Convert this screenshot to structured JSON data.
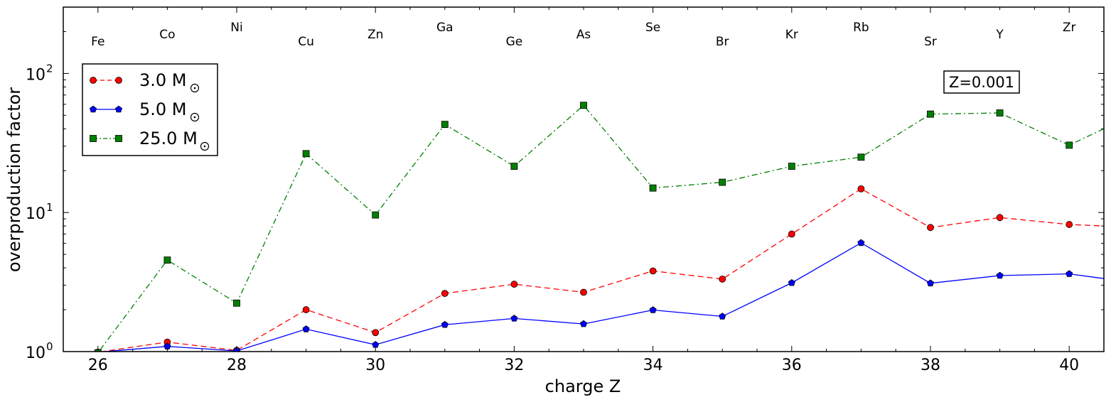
{
  "chart_data": {
    "type": "line",
    "xlabel": "charge Z",
    "ylabel": "overproduction factor",
    "yscale": "log",
    "xlim": [
      25.5,
      40.5
    ],
    "ylim": [
      1.0,
      300
    ],
    "x_ticks": [
      26,
      28,
      30,
      32,
      34,
      36,
      38,
      40
    ],
    "y_ticks": [
      {
        "value": 1,
        "mantissa": "10",
        "exponent": "0"
      },
      {
        "value": 10,
        "mantissa": "10",
        "exponent": "1"
      },
      {
        "value": 100,
        "mantissa": "10",
        "exponent": "2"
      }
    ],
    "annotation": "Z=0.001",
    "element_labels": [
      {
        "z": 26,
        "symbol": "Fe",
        "row": 2
      },
      {
        "z": 27,
        "symbol": "Co",
        "row": 1
      },
      {
        "z": 28,
        "symbol": "Ni",
        "row": 0
      },
      {
        "z": 29,
        "symbol": "Cu",
        "row": 2
      },
      {
        "z": 30,
        "symbol": "Zn",
        "row": 1
      },
      {
        "z": 31,
        "symbol": "Ga",
        "row": 0
      },
      {
        "z": 32,
        "symbol": "Ge",
        "row": 2
      },
      {
        "z": 33,
        "symbol": "As",
        "row": 1
      },
      {
        "z": 34,
        "symbol": "Se",
        "row": 0
      },
      {
        "z": 35,
        "symbol": "Br",
        "row": 2
      },
      {
        "z": 36,
        "symbol": "Kr",
        "row": 1
      },
      {
        "z": 37,
        "symbol": "Rb",
        "row": 0
      },
      {
        "z": 38,
        "symbol": "Sr",
        "row": 2
      },
      {
        "z": 39,
        "symbol": "Y",
        "row": 1
      },
      {
        "z": 40,
        "symbol": "Zr",
        "row": 0
      }
    ],
    "series": [
      {
        "name": "3.0 M☉",
        "legend_label": "3.0 M",
        "color": "#ff0000",
        "marker": "circle",
        "dash": "8,5",
        "x": [
          25.5,
          26,
          27,
          28,
          29,
          30,
          31,
          32,
          33,
          34,
          35,
          36,
          37,
          38,
          39,
          40,
          40.5
        ],
        "values": [
          0.995,
          0.99,
          1.17,
          1.02,
          2.0,
          1.37,
          2.62,
          3.05,
          2.67,
          3.8,
          3.32,
          7.0,
          14.8,
          7.8,
          9.2,
          8.2,
          8.0
        ]
      },
      {
        "name": "5.0 M☉",
        "legend_label": "5.0 M",
        "color": "#0000ff",
        "marker": "pentagon",
        "dash": "",
        "x": [
          25.5,
          26,
          27,
          28,
          29,
          30,
          31,
          32,
          33,
          34,
          35,
          36,
          37,
          38,
          39,
          40,
          40.5
        ],
        "values": [
          0.995,
          0.99,
          1.09,
          1.01,
          1.45,
          1.12,
          1.56,
          1.73,
          1.58,
          1.99,
          1.79,
          3.12,
          6.05,
          3.1,
          3.52,
          3.62,
          3.35
        ]
      },
      {
        "name": "25.0 M☉",
        "legend_label": "25.0 M",
        "color": "#007f00",
        "marker": "square",
        "dash": "8,4,2,4",
        "x": [
          25.5,
          26,
          27,
          28,
          29,
          30,
          31,
          32,
          33,
          34,
          35,
          36,
          37,
          38,
          39,
          40,
          40.5
        ],
        "values": [
          0.995,
          0.98,
          4.55,
          2.23,
          26.5,
          9.6,
          43,
          21.5,
          59,
          15,
          16.5,
          21.5,
          25,
          51,
          52,
          30.5,
          40
        ]
      }
    ]
  }
}
